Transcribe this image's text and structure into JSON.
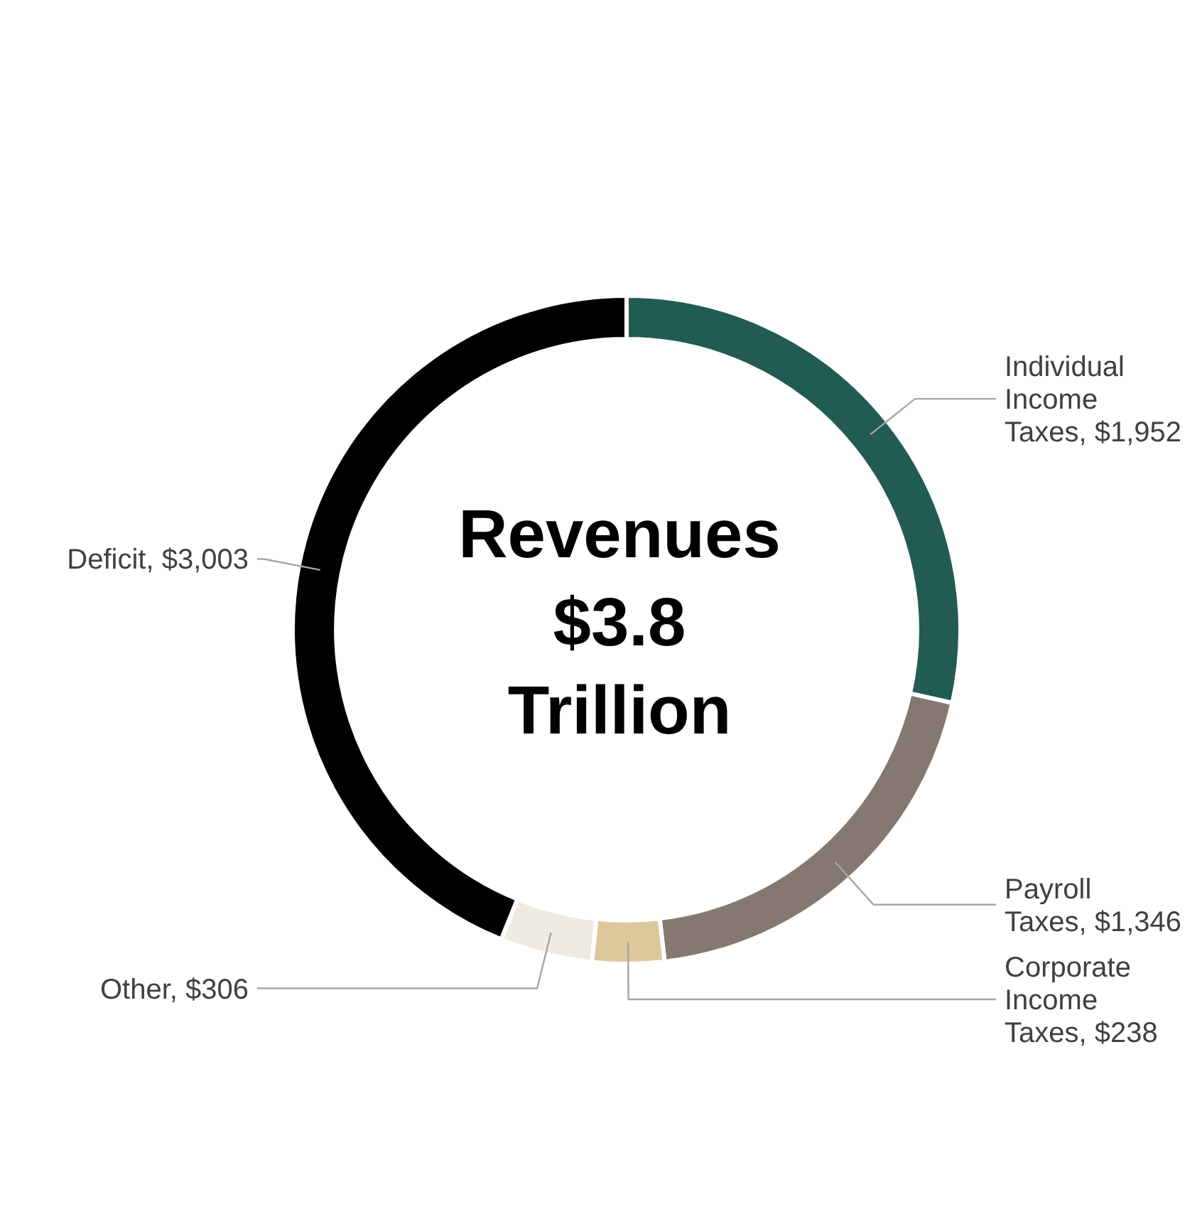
{
  "chart_data": {
    "type": "donut",
    "categories": [
      "Individual Income Taxes",
      "Payroll Taxes",
      "Corporate Income Taxes",
      "Other",
      "Deficit"
    ],
    "values": [
      1952,
      1346,
      238,
      306,
      3003
    ],
    "colors": [
      "#215b52",
      "#857870",
      "#dcc89a",
      "#eeebe0",
      "#000000"
    ],
    "value_labels": [
      "$1,952",
      "$1,346",
      "$238",
      "$306",
      "$3,003"
    ],
    "annotations": [
      "Revenues $3.8 Trillion"
    ]
  }
}
